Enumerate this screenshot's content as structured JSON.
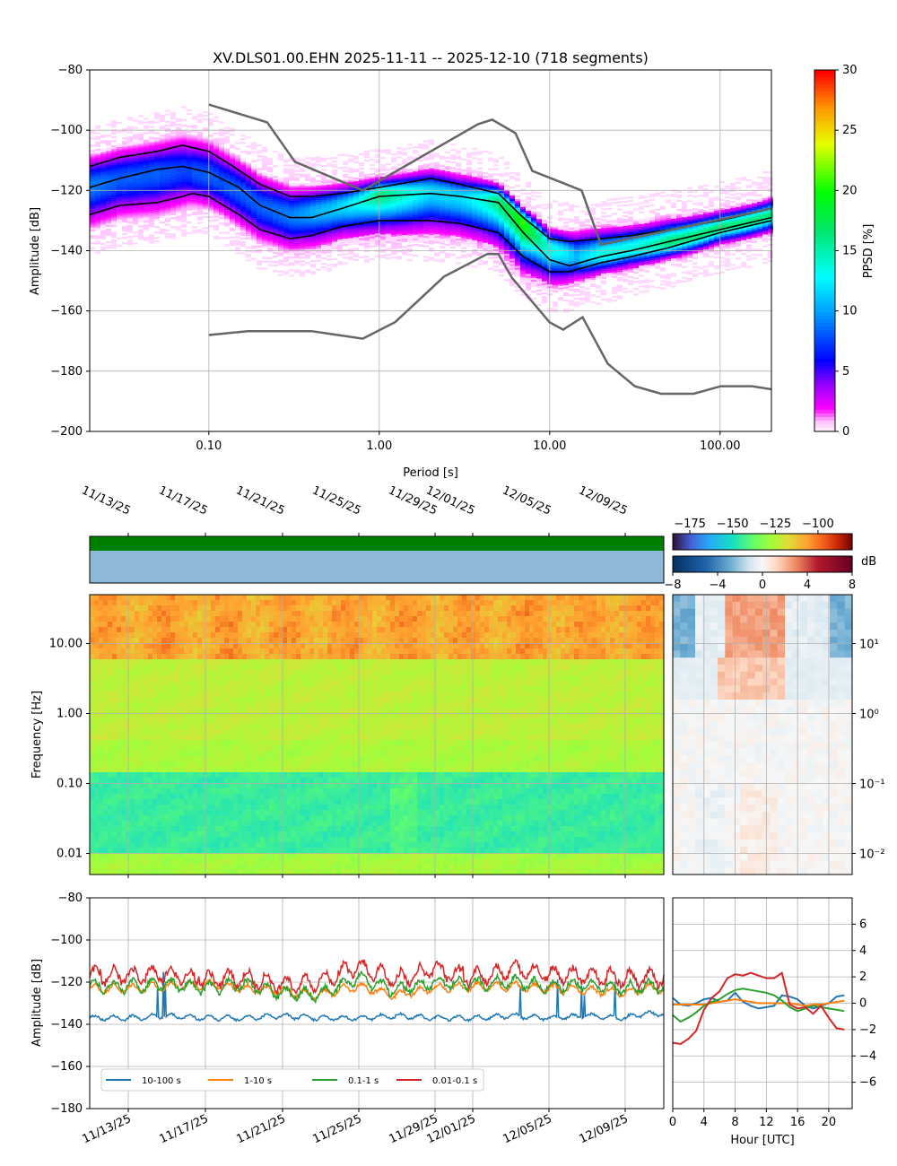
{
  "chart_data": [
    {
      "id": "ppsd",
      "type": "heatmap",
      "title": "XV.DLS01.00.EHN   2025-11-11 -- 2025-12-10  (718 segments)",
      "xlabel": "Period [s]",
      "ylabel": "Amplitude [dB]",
      "x_scale": "log",
      "xlim": [
        0.02,
        200
      ],
      "ylim": [
        -200,
        -80
      ],
      "xticks": [
        0.1,
        1,
        10,
        100
      ],
      "xtick_labels": [
        "0.10",
        "1.00",
        "10.00",
        "100.00"
      ],
      "yticks": [
        -200,
        -180,
        -160,
        -140,
        -120,
        -100,
        -80
      ],
      "colorbar": {
        "label": "PPSD [%]",
        "range": [
          0,
          30
        ],
        "ticks": [
          0,
          5,
          10,
          15,
          20,
          25,
          30
        ]
      },
      "density_ridge": {
        "period": [
          0.02,
          0.03,
          0.05,
          0.07,
          0.1,
          0.15,
          0.2,
          0.3,
          0.5,
          1,
          2,
          3,
          5,
          7,
          10,
          15,
          20,
          30,
          50,
          100,
          200
        ],
        "amplitude": [
          -118,
          -116,
          -114,
          -113,
          -115,
          -120,
          -125,
          -128,
          -126,
          -121,
          -120,
          -122,
          -123,
          -130,
          -139,
          -142,
          -141,
          -139,
          -137,
          -132,
          -128
        ]
      },
      "series": [
        {
          "name": "",
          "role": "percentile",
          "color": "#000000",
          "x": [
            0.02,
            0.03,
            0.05,
            0.07,
            0.1,
            0.13,
            0.2,
            0.3,
            0.4,
            0.6,
            1,
            2,
            3,
            5,
            7,
            10,
            13,
            20,
            30,
            50,
            100,
            200
          ],
          "y": [
            -112,
            -109,
            -107,
            -105,
            -107,
            -111,
            -118,
            -122,
            -122,
            -121,
            -119,
            -116,
            -118,
            -121,
            -129,
            -136,
            -137,
            -136,
            -135,
            -133,
            -130,
            -126
          ]
        },
        {
          "name": "",
          "role": "mean",
          "color": "#000000",
          "x": [
            0.02,
            0.03,
            0.05,
            0.07,
            0.1,
            0.15,
            0.2,
            0.3,
            0.4,
            0.6,
            1,
            2,
            3,
            5,
            7,
            10,
            13,
            20,
            30,
            50,
            100,
            200
          ],
          "y": [
            -119,
            -116,
            -113,
            -112,
            -114,
            -119,
            -125,
            -129,
            -129,
            -126,
            -122,
            -121,
            -122,
            -124,
            -134,
            -143,
            -145,
            -142,
            -140,
            -137,
            -133,
            -129
          ]
        },
        {
          "name": "",
          "role": "percentile",
          "color": "#000000",
          "x": [
            0.02,
            0.03,
            0.05,
            0.07,
            0.08,
            0.1,
            0.15,
            0.2,
            0.3,
            0.4,
            0.6,
            1,
            2,
            3,
            5,
            7,
            10,
            13,
            20,
            30,
            50,
            100,
            200
          ],
          "y": [
            -128,
            -125,
            -124,
            -122,
            -121,
            -122,
            -128,
            -133,
            -136,
            -135,
            -132,
            -130,
            -130,
            -131,
            -134,
            -142,
            -147,
            -147,
            -144,
            -142,
            -139,
            -134,
            -130
          ]
        },
        {
          "name": "",
          "role": "nhnm",
          "color": "#666666",
          "x": [
            0.1,
            0.22,
            0.32,
            0.8,
            3.8,
            4.6,
            6.3,
            7.9,
            15.4,
            20,
            354.8
          ],
          "y": [
            -91.5,
            -97.4,
            -110.5,
            -120,
            -98,
            -96.5,
            -101,
            -113.5,
            -120,
            -138,
            -126
          ]
        },
        {
          "name": "",
          "role": "nlnm",
          "color": "#666666",
          "x": [
            0.1,
            0.17,
            0.4,
            0.8,
            1.24,
            2.4,
            4.3,
            5,
            6,
            10,
            12,
            15.6,
            21.9,
            31.6,
            45,
            70,
            101,
            154,
            200
          ],
          "y": [
            -168,
            -166.7,
            -166.7,
            -169.2,
            -163.7,
            -148.6,
            -141.1,
            -141.1,
            -149,
            -163.8,
            -166.2,
            -162.1,
            -177.5,
            -185,
            -187.5,
            -187.5,
            -185,
            -185,
            -186
          ]
        }
      ]
    },
    {
      "id": "spectrogram",
      "type": "heatmap",
      "ylabel": "Frequency [Hz]",
      "y_scale": "log",
      "ylim": [
        0.005,
        50
      ],
      "yticks": [
        0.01,
        0.1,
        1,
        10
      ],
      "ytick_labels": [
        "0.01",
        "0.10",
        "1.00",
        "10.00"
      ],
      "x_dates": [
        "11/13/25",
        "11/17/25",
        "11/21/25",
        "11/25/25",
        "11/29/25",
        "12/01/25",
        "12/05/25",
        "12/09/25"
      ],
      "colorbar": {
        "range": [
          -185,
          -80
        ],
        "ticks": [
          -175,
          -150,
          -125,
          -100
        ],
        "tick_labels": [
          "−175",
          "−150",
          "−125",
          "−100"
        ]
      },
      "band_levels": [
        {
          "freq_range": [
            0.005,
            0.01
          ],
          "level": -127
        },
        {
          "freq_range": [
            0.01,
            0.15
          ],
          "level": -145
        },
        {
          "freq_range": [
            0.15,
            0.4
          ],
          "level": -126
        },
        {
          "freq_range": [
            0.4,
            6
          ],
          "level": -123
        },
        {
          "freq_range": [
            6,
            50
          ],
          "level": -108
        }
      ]
    },
    {
      "id": "hourly_anomaly",
      "type": "heatmap",
      "y_scale": "log",
      "ylim": [
        0.005,
        50
      ],
      "yticks": [
        0.01,
        0.1,
        1,
        10
      ],
      "ytick_labels": [
        "10⁻²",
        "10⁻¹",
        "10⁰",
        "10¹"
      ],
      "colorbar": {
        "label": "dB",
        "range": [
          -8,
          8
        ],
        "ticks": [
          -8,
          -4,
          0,
          4,
          8
        ],
        "tick_labels": [
          "−8",
          "−4",
          "0",
          "4",
          "8"
        ]
      }
    },
    {
      "id": "band_timeseries",
      "type": "line",
      "ylabel": "Amplitude [dB]",
      "ylim": [
        -180,
        -80
      ],
      "yticks": [
        -180,
        -160,
        -140,
        -120,
        -100,
        -80
      ],
      "x_dates": [
        "11/13/25",
        "11/17/25",
        "11/21/25",
        "11/25/25",
        "11/29/25",
        "12/01/25",
        "12/05/25",
        "12/09/25"
      ],
      "legend_position": "lower-left",
      "series": [
        {
          "name": "10-100 s",
          "color": "#1f77b4",
          "base": -137,
          "x_days": [
            2,
            4,
            6,
            8,
            10,
            12,
            14,
            16,
            18,
            20,
            22,
            24,
            26,
            28,
            29
          ],
          "y": [
            -137,
            -136,
            -137,
            -137,
            -136,
            -137,
            -137,
            -136,
            -137,
            -137,
            -136,
            -137,
            -136,
            -137,
            -135
          ]
        },
        {
          "name": "1-10 s",
          "color": "#ff7f0e",
          "base": -124,
          "x_days": [
            2,
            4,
            6,
            8,
            10,
            12,
            14,
            16,
            18,
            20,
            22,
            24,
            26,
            28,
            29
          ],
          "y": [
            -123,
            -122,
            -121,
            -123,
            -124,
            -126,
            -122,
            -126,
            -123,
            -122,
            -122,
            -123,
            -124,
            -125,
            -123
          ]
        },
        {
          "name": "0.1-1 s",
          "color": "#2ca02c",
          "base": -123,
          "x_days": [
            2,
            4,
            6,
            8,
            10,
            12,
            14,
            16,
            18,
            20,
            22,
            24,
            26,
            28,
            29
          ],
          "y": [
            -122,
            -121,
            -123,
            -121,
            -125,
            -126,
            -118,
            -124,
            -120,
            -121,
            -120,
            -122,
            -121,
            -123,
            -122
          ]
        },
        {
          "name": "0.01-0.1 s",
          "color": "#d62728",
          "base": -119,
          "x_days": [
            2,
            4,
            6,
            8,
            10,
            12,
            14,
            16,
            18,
            20,
            22,
            24,
            26,
            28,
            29
          ],
          "y": [
            -117,
            -116,
            -119,
            -118,
            -121,
            -120,
            -112,
            -119,
            -114,
            -118,
            -114,
            -116,
            -117,
            -118,
            -118
          ]
        }
      ]
    },
    {
      "id": "hourly_profile",
      "type": "line",
      "xlabel": "Hour [UTC]",
      "xlim": [
        0,
        23
      ],
      "ylim": [
        -8,
        8
      ],
      "xticks": [
        0,
        4,
        8,
        12,
        16,
        20
      ],
      "yticks": [
        -6,
        -4,
        -2,
        0,
        2,
        4,
        6
      ],
      "ytick_labels": [
        "−6",
        "−4",
        "−2",
        "0",
        "2",
        "4",
        "6"
      ],
      "series": [
        {
          "name": "10-100 s",
          "color": "#1f77b4",
          "x": [
            0,
            1,
            2,
            3,
            4,
            5,
            6,
            7,
            8,
            9,
            10,
            11,
            12,
            13,
            14,
            15,
            16,
            17,
            18,
            19,
            20,
            21,
            22
          ],
          "y": [
            0.4,
            -0.1,
            -0.2,
            0.0,
            0.3,
            0.4,
            0.1,
            0.2,
            0.8,
            0.1,
            -0.2,
            -0.4,
            -0.3,
            -0.2,
            0.6,
            0.5,
            0.3,
            -0.2,
            -0.4,
            -0.2,
            0.0,
            0.5,
            0.6
          ]
        },
        {
          "name": "1-10 s",
          "color": "#ff7f0e",
          "x": [
            0,
            1,
            2,
            3,
            4,
            5,
            6,
            7,
            8,
            9,
            10,
            11,
            12,
            13,
            14,
            15,
            16,
            17,
            18,
            19,
            20,
            21,
            22
          ],
          "y": [
            -0.1,
            -0.1,
            -0.1,
            -0.1,
            -0.1,
            0.0,
            0.1,
            0.2,
            0.3,
            0.2,
            0.1,
            0.0,
            0.0,
            0.0,
            0.0,
            0.0,
            -0.1,
            -0.2,
            -0.1,
            -0.1,
            0.0,
            0.1,
            0.2
          ]
        },
        {
          "name": "0.1-1 s",
          "color": "#2ca02c",
          "x": [
            0,
            1,
            2,
            3,
            4,
            5,
            6,
            7,
            8,
            9,
            10,
            11,
            12,
            13,
            14,
            15,
            16,
            17,
            18,
            19,
            20,
            21,
            22
          ],
          "y": [
            -0.9,
            -1.4,
            -1.1,
            -0.7,
            -0.2,
            0.1,
            0.3,
            0.7,
            1.0,
            1.1,
            1.0,
            0.9,
            0.8,
            0.6,
            0.2,
            -0.3,
            -0.6,
            -0.4,
            -0.2,
            -0.3,
            -0.4,
            -0.5,
            -0.6
          ]
        },
        {
          "name": "0.01-0.1 s",
          "color": "#d62728",
          "x": [
            0,
            1,
            2,
            3,
            4,
            5,
            6,
            7,
            8,
            9,
            10,
            11,
            12,
            13,
            14,
            15,
            16,
            17,
            18,
            19,
            20,
            21,
            22
          ],
          "y": [
            -3.0,
            -3.1,
            -2.7,
            -2.1,
            -0.5,
            0.4,
            0.9,
            1.9,
            2.2,
            2.1,
            2.3,
            2.1,
            1.9,
            1.9,
            2.3,
            -0.1,
            -0.4,
            -0.3,
            -0.8,
            -0.2,
            -1.1,
            -1.9,
            -2.0
          ]
        }
      ]
    }
  ]
}
